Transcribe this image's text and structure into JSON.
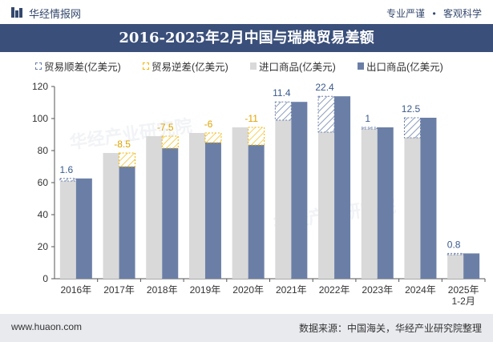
{
  "header": {
    "brand": "华经情报网",
    "tagline_left": "专业严谨",
    "tagline_sep": "•",
    "tagline_right": "客观科学"
  },
  "title": "2016-2025年2月中国与瑞典贸易差额",
  "legend": [
    {
      "label": "贸易顺差(亿美元)",
      "kind": "surplus"
    },
    {
      "label": "贸易逆差(亿美元)",
      "kind": "deficit"
    },
    {
      "label": "进口商品(亿美元)",
      "kind": "import"
    },
    {
      "label": "出口商品(亿美元)",
      "kind": "export"
    }
  ],
  "watermark": "华经产业研究院",
  "footer": {
    "url": "www.huaon.com",
    "source": "数据来源：中国海关，华经产业研究院整理"
  },
  "colors": {
    "import": "#d9d9d9",
    "export": "#6b7fa6",
    "surplus_outline": "#6b7fa6",
    "deficit_outline": "#f2b705",
    "surplus_label": "#3a5a8c",
    "deficit_label": "#e0a300",
    "title_bg": "#3a4f7a",
    "axis_text": "#333333"
  },
  "chart_data": {
    "type": "bar",
    "categories": [
      "2016年",
      "2017年",
      "2018年",
      "2019年",
      "2020年",
      "2021年",
      "2022年",
      "2023年",
      "2024年",
      "2025年\n1-2月"
    ],
    "series": [
      {
        "name": "进口商品(亿美元)",
        "values": [
          61.0,
          78.5,
          89.0,
          91.0,
          94.5,
          99.0,
          91.5,
          93.5,
          88.0,
          15.0
        ]
      },
      {
        "name": "出口商品(亿美元)",
        "values": [
          62.6,
          70.0,
          81.5,
          85.0,
          83.5,
          110.4,
          113.9,
          94.5,
          100.5,
          15.8
        ]
      }
    ],
    "balance": [
      1.6,
      -8.5,
      -7.5,
      -6,
      -11,
      11.4,
      22.4,
      1,
      12.5,
      0.8
    ],
    "balance_labels": [
      "1.6",
      "-8.5",
      "-7.5",
      "-6",
      "-11",
      "11.4",
      "22.4",
      "1",
      "12.5",
      "0.8"
    ],
    "ylim": [
      0,
      120
    ],
    "yticks": [
      0,
      20,
      40,
      60,
      80,
      100,
      120
    ],
    "grid": false,
    "legend_position": "top"
  }
}
